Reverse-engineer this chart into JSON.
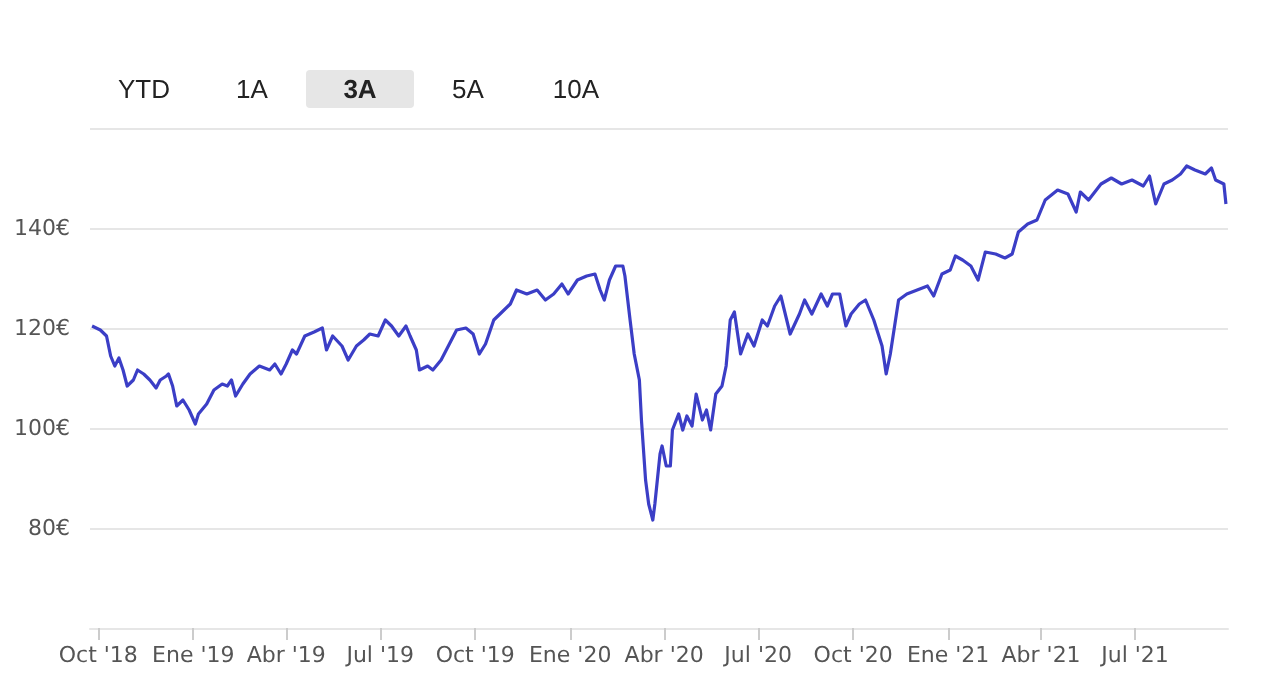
{
  "chart_data": {
    "type": "line",
    "annotations": [
      "YTD",
      "1A",
      "3A",
      "5A",
      "10A"
    ],
    "x": [
      "2018-09-25",
      "2018-10-03",
      "2018-10-09",
      "2018-10-13",
      "2018-10-17",
      "2018-10-21",
      "2018-10-25",
      "2018-10-29",
      "2018-11-04",
      "2018-11-08",
      "2018-11-14",
      "2018-11-20",
      "2018-11-26",
      "2018-11-30",
      "2018-12-06",
      "2018-12-08",
      "2018-12-12",
      "2018-12-16",
      "2018-12-22",
      "2018-12-28",
      "2019-01-03",
      "2019-01-06",
      "2019-01-14",
      "2019-01-21",
      "2019-01-29",
      "2019-02-03",
      "2019-02-07",
      "2019-02-11",
      "2019-02-18",
      "2019-02-25",
      "2019-03-06",
      "2019-03-16",
      "2019-03-21",
      "2019-03-27",
      "2019-04-01",
      "2019-04-07",
      "2019-04-11",
      "2019-04-19",
      "2019-04-28",
      "2019-05-06",
      "2019-05-10",
      "2019-05-16",
      "2019-05-25",
      "2019-05-31",
      "2019-06-08",
      "2019-06-15",
      "2019-06-21",
      "2019-06-29",
      "2019-07-06",
      "2019-07-12",
      "2019-07-19",
      "2019-07-26",
      "2019-07-30",
      "2019-08-05",
      "2019-08-08",
      "2019-08-16",
      "2019-08-21",
      "2019-08-29",
      "2019-09-03",
      "2019-09-13",
      "2019-09-22",
      "2019-09-29",
      "2019-10-05",
      "2019-10-11",
      "2019-10-19",
      "2019-10-25",
      "2019-11-04",
      "2019-11-10",
      "2019-11-20",
      "2019-11-30",
      "2019-12-08",
      "2019-12-16",
      "2019-12-24",
      "2019-12-30",
      "2020-01-08",
      "2020-01-17",
      "2020-01-25",
      "2020-01-30",
      "2020-02-03",
      "2020-02-08",
      "2020-02-14",
      "2020-02-21",
      "2020-02-23",
      "2020-02-28",
      "2020-03-03",
      "2020-03-08",
      "2020-03-10",
      "2020-03-14",
      "2020-03-17",
      "2020-03-21",
      "2020-03-23",
      "2020-03-28",
      "2020-03-30",
      "2020-04-03",
      "2020-04-07",
      "2020-04-09",
      "2020-04-15",
      "2020-04-19",
      "2020-04-23",
      "2020-04-28",
      "2020-05-02",
      "2020-05-08",
      "2020-05-12",
      "2020-05-16",
      "2020-05-21",
      "2020-05-27",
      "2020-05-31",
      "2020-06-04",
      "2020-06-08",
      "2020-06-14",
      "2020-06-21",
      "2020-06-27",
      "2020-07-05",
      "2020-07-10",
      "2020-07-17",
      "2020-07-23",
      "2020-08-01",
      "2020-08-10",
      "2020-08-15",
      "2020-08-22",
      "2020-08-31",
      "2020-09-06",
      "2020-09-11",
      "2020-09-18",
      "2020-09-24",
      "2020-09-29",
      "2020-10-07",
      "2020-10-13",
      "2020-10-21",
      "2020-10-29",
      "2020-11-02",
      "2020-11-06",
      "2020-11-14",
      "2020-11-22",
      "2020-12-02",
      "2020-12-12",
      "2020-12-18",
      "2020-12-26",
      "2021-01-03",
      "2021-01-08",
      "2021-01-15",
      "2021-01-23",
      "2021-01-30",
      "2021-02-06",
      "2021-02-16",
      "2021-02-25",
      "2021-03-04",
      "2021-03-10",
      "2021-03-19",
      "2021-03-28",
      "2021-04-05",
      "2021-04-17",
      "2021-04-27",
      "2021-05-05",
      "2021-05-09",
      "2021-05-17",
      "2021-05-29",
      "2021-06-08",
      "2021-06-18",
      "2021-06-28",
      "2021-07-09",
      "2021-07-15",
      "2021-07-21",
      "2021-07-29",
      "2021-08-06",
      "2021-08-14",
      "2021-08-20",
      "2021-08-28",
      "2021-09-07",
      "2021-09-13",
      "2021-09-17",
      "2021-09-25",
      "2021-09-27"
    ],
    "series": [
      {
        "color": "#3b3ec6",
        "values": [
          120.4,
          119.6,
          118.4,
          114.4,
          112.4,
          114,
          111.6,
          108.4,
          109.6,
          111.6,
          110.8,
          109.6,
          108,
          109.6,
          110.4,
          110.8,
          108.4,
          104.4,
          105.6,
          103.6,
          100.8,
          102.8,
          104.8,
          107.6,
          108.8,
          108.4,
          109.6,
          106.4,
          108.8,
          110.8,
          112.4,
          111.6,
          112.8,
          110.8,
          112.8,
          115.6,
          114.8,
          118.4,
          119.2,
          120,
          115.6,
          118.4,
          116.4,
          113.6,
          116.4,
          117.6,
          118.8,
          118.4,
          121.6,
          120.4,
          118.4,
          120.4,
          118.4,
          115.6,
          111.6,
          112.4,
          111.6,
          113.6,
          115.6,
          119.6,
          120,
          118.8,
          114.8,
          116.8,
          121.6,
          122.8,
          124.8,
          127.6,
          126.8,
          127.6,
          125.6,
          126.8,
          128.8,
          126.8,
          129.6,
          130.4,
          130.8,
          127.6,
          125.6,
          129.6,
          132.4,
          132.4,
          130.4,
          121.6,
          114.8,
          109.6,
          101.6,
          89.6,
          84.8,
          81.6,
          84.8,
          94.8,
          96.4,
          92.4,
          92.4,
          99.6,
          102.8,
          99.6,
          102.4,
          100.4,
          106.8,
          101.6,
          103.6,
          99.6,
          106.8,
          108.4,
          112.4,
          121.6,
          123.2,
          114.8,
          118.8,
          116.4,
          121.6,
          120.4,
          124.4,
          126.4,
          118.8,
          122.8,
          125.6,
          122.8,
          126.8,
          124.4,
          126.8,
          126.8,
          120.4,
          122.8,
          124.8,
          125.6,
          121.6,
          116.4,
          110.8,
          114.8,
          125.6,
          126.8,
          127.6,
          128.4,
          126.4,
          130.8,
          131.6,
          134.4,
          133.6,
          132.4,
          129.6,
          135.2,
          134.8,
          134,
          134.8,
          139.2,
          140.8,
          141.6,
          145.6,
          147.6,
          146.8,
          143.2,
          147.2,
          145.6,
          148.8,
          150,
          148.8,
          149.6,
          148.4,
          150.4,
          144.8,
          148.8,
          149.6,
          150.8,
          152.4,
          151.6,
          150.8,
          152,
          149.6,
          148.8,
          144.8
        ]
      }
    ],
    "xlim": [
      "2018-09-23",
      "2021-09-29"
    ],
    "xticks": [
      {
        "value": "2018-10-01",
        "label": "Oct '18"
      },
      {
        "value": "2019-01-01",
        "label": "Ene '19"
      },
      {
        "value": "2019-04-01",
        "label": "Abr '19"
      },
      {
        "value": "2019-07-01",
        "label": "Jul '19"
      },
      {
        "value": "2019-10-01",
        "label": "Oct '19"
      },
      {
        "value": "2020-01-01",
        "label": "Ene '20"
      },
      {
        "value": "2020-04-01",
        "label": "Abr '20"
      },
      {
        "value": "2020-07-01",
        "label": "Jul '20"
      },
      {
        "value": "2020-10-01",
        "label": "Oct '20"
      },
      {
        "value": "2021-01-01",
        "label": "Ene '21"
      },
      {
        "value": "2021-04-01",
        "label": "Abr '21"
      },
      {
        "value": "2021-07-01",
        "label": "Jul '21"
      }
    ],
    "ylim": [
      60,
      160
    ],
    "yticks": [
      {
        "value": 60,
        "label": null
      },
      {
        "value": 80,
        "label": "80€"
      },
      {
        "value": 100,
        "label": "100€"
      },
      {
        "value": 120,
        "label": "120€"
      },
      {
        "value": 140,
        "label": "140€"
      },
      {
        "value": 160,
        "label": null
      }
    ],
    "grid": "y",
    "marker": "none",
    "line_style": "solid"
  }
}
